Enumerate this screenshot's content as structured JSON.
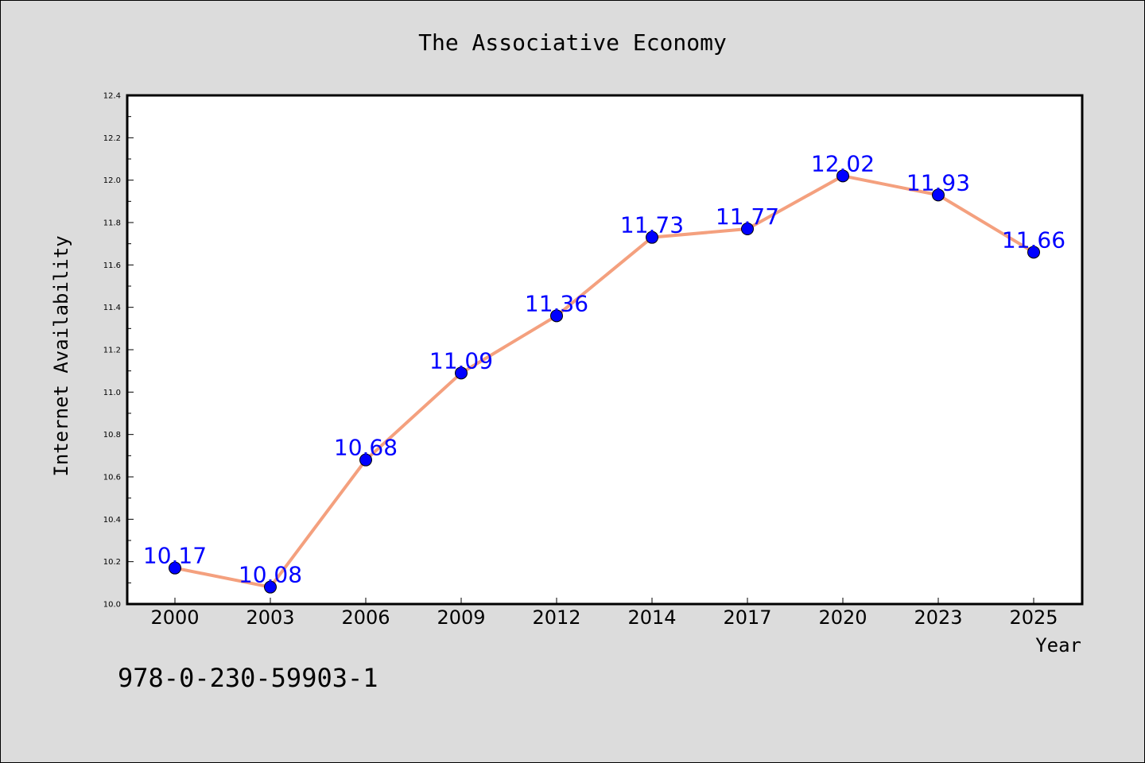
{
  "chart_data": {
    "type": "line",
    "title": "The Associative Economy",
    "xlabel": "Year",
    "ylabel": "Internet Availability",
    "categories": [
      "2000",
      "2003",
      "2006",
      "2009",
      "2012",
      "2014",
      "2017",
      "2020",
      "2023",
      "2025"
    ],
    "series": [
      {
        "values": [
          10.17,
          10.08,
          10.68,
          11.09,
          11.36,
          11.73,
          11.77,
          12.02,
          11.93,
          11.66
        ],
        "line_color": "#f4a07e",
        "marker_color": "#0000ff"
      }
    ],
    "data_labels": [
      "10.17",
      "10.08",
      "10.68",
      "11.09",
      "11.36",
      "11.73",
      "11.77",
      "12.02",
      "11.93",
      "11.66"
    ],
    "ylim": [
      10.0,
      12.4
    ],
    "yticks": [
      "10.0",
      "10.2",
      "10.4",
      "10.6",
      "10.8",
      "11.0",
      "11.2",
      "11.4",
      "11.6",
      "11.8",
      "12.0",
      "12.2",
      "12.4"
    ],
    "grid": false,
    "legend": "none"
  },
  "annotation": {
    "isbn": "978-0-230-59903-1"
  },
  "colors": {
    "background": "#dcdcdc",
    "plot_area": "#ffffff",
    "line": "#f4a07e",
    "marker": "#0000ff",
    "data_label": "#0000ff"
  }
}
